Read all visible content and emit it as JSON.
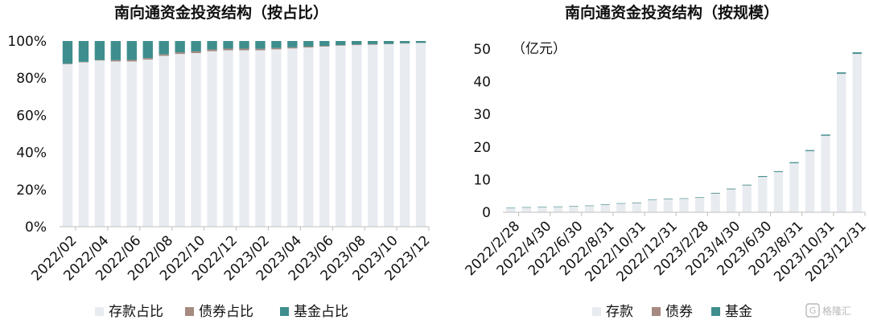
{
  "colors": {
    "deposit": "#E8ECF1",
    "bond": "#A68A80",
    "fund": "#3F8E8E",
    "axis": "#BFBFBF"
  },
  "watermark": {
    "text": "格隆汇",
    "icon": "gelonghui-logo-icon"
  },
  "chart_data": [
    {
      "type": "bar",
      "stacked": true,
      "title": "南向通资金投资结构（按占比）",
      "ytick_labels": [
        "0%",
        "20%",
        "40%",
        "60%",
        "80%",
        "100%"
      ],
      "ylim": [
        0,
        100
      ],
      "xtick_labels": [
        "2022/02",
        "2022/04",
        "2022/06",
        "2022/08",
        "2022/10",
        "2022/12",
        "2023/02",
        "2023/04",
        "2023/06",
        "2023/08",
        "2023/10",
        "2023/12"
      ],
      "legend": [
        "存款占比",
        "债券占比",
        "基金占比"
      ],
      "series": [
        {
          "name": "存款占比",
          "values": [
            87.5,
            88.5,
            89.5,
            89.0,
            89.0,
            90.0,
            92.0,
            93.0,
            93.5,
            94.5,
            95.0,
            95.0,
            95.0,
            95.5,
            96.0,
            96.5,
            97.0,
            97.5,
            97.8,
            98.0,
            98.3,
            98.6,
            98.9
          ]
        },
        {
          "name": "债券占比",
          "values": [
            0.3,
            0.3,
            0.3,
            0.7,
            0.8,
            0.8,
            0.8,
            0.9,
            0.9,
            0.9,
            0.9,
            0.9,
            0.8,
            0.7,
            0.6,
            0.5,
            0.4,
            0.3,
            0.3,
            0.3,
            0.2,
            0.2,
            0.1
          ]
        },
        {
          "name": "基金占比",
          "values": [
            12.2,
            11.2,
            10.2,
            10.3,
            10.2,
            9.2,
            7.2,
            6.1,
            5.6,
            4.6,
            4.1,
            4.1,
            4.2,
            3.8,
            3.4,
            3.0,
            2.6,
            2.2,
            1.9,
            1.7,
            1.5,
            1.2,
            1.0
          ]
        }
      ]
    },
    {
      "type": "bar",
      "stacked": true,
      "title": "南向通资金投资结构（按规模）",
      "unit": "（亿元）",
      "ytick_labels": [
        "0",
        "10",
        "20",
        "30",
        "40",
        "50"
      ],
      "ylim": [
        0,
        50
      ],
      "xtick_labels": [
        "2022/2/28",
        "2022/4/30",
        "2022/6/30",
        "2022/8/31",
        "2022/10/31",
        "2022/12/31",
        "2023/2/28",
        "2023/4/30",
        "2023/6/30",
        "2023/8/31",
        "2023/10/31",
        "2023/12/31"
      ],
      "legend": [
        "存款",
        "债券",
        "基金"
      ],
      "series": [
        {
          "name": "存款",
          "values": [
            1.2,
            1.4,
            1.5,
            1.6,
            1.7,
            1.9,
            2.3,
            2.6,
            2.8,
            3.7,
            4.0,
            4.1,
            4.4,
            5.7,
            7.0,
            8.2,
            10.8,
            12.3,
            15.0,
            18.7,
            23.4,
            42.4,
            48.5
          ]
        },
        {
          "name": "债券",
          "values": [
            0.02,
            0.02,
            0.02,
            0.02,
            0.02,
            0.02,
            0.02,
            0.03,
            0.03,
            0.03,
            0.03,
            0.03,
            0.04,
            0.04,
            0.04,
            0.04,
            0.04,
            0.04,
            0.04,
            0.05,
            0.05,
            0.05,
            0.05
          ]
        },
        {
          "name": "基金",
          "values": [
            0.15,
            0.15,
            0.15,
            0.15,
            0.15,
            0.15,
            0.15,
            0.15,
            0.15,
            0.15,
            0.15,
            0.15,
            0.15,
            0.2,
            0.2,
            0.2,
            0.25,
            0.25,
            0.3,
            0.3,
            0.35,
            0.4,
            0.45
          ]
        }
      ]
    }
  ]
}
